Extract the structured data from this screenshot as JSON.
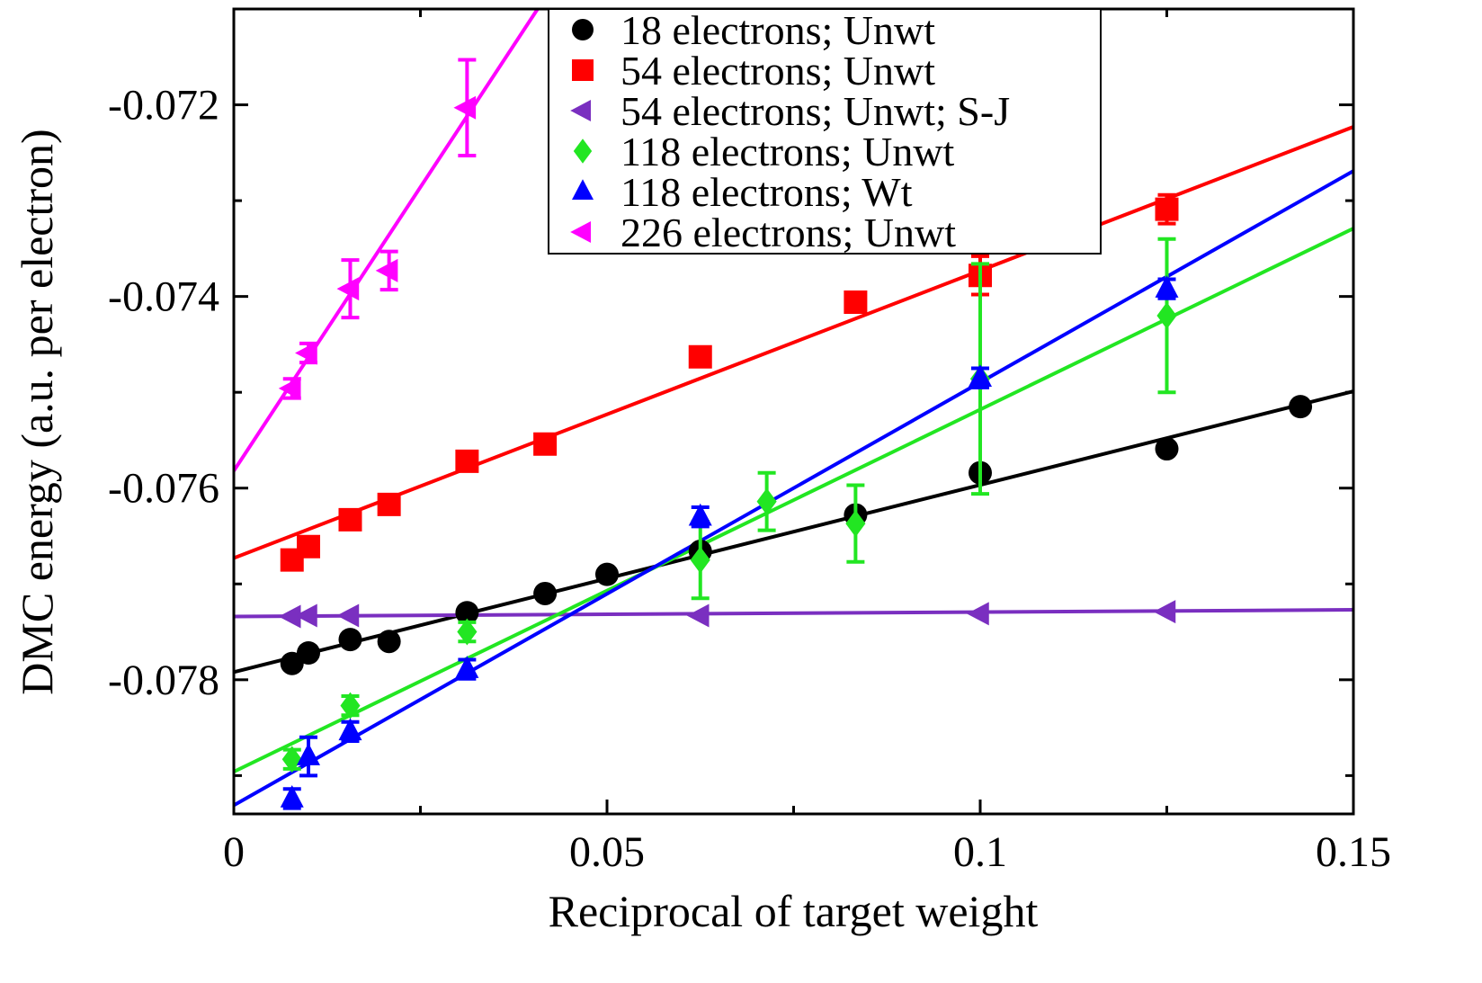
{
  "chart_data": {
    "type": "scatter",
    "x_label": "Reciprocal of target weight",
    "y_label": "DMC energy (a.u. per electron)",
    "xlim": [
      0,
      0.15
    ],
    "ylim": [
      -0.0794,
      -0.071
    ],
    "xticks": [
      0,
      0.05,
      0.1,
      0.15
    ],
    "yticks": [
      -0.078,
      -0.076,
      -0.074,
      -0.072
    ],
    "xminorticks": [
      0.025,
      0.075,
      0.125
    ],
    "yminorticks": [
      -0.079,
      -0.077,
      -0.075,
      -0.073,
      -0.071
    ],
    "legend": "top-center",
    "series": [
      {
        "name": "18 electrons; Unwt",
        "color": "#000000",
        "marker": "circle",
        "x": [
          0.0078,
          0.01,
          0.0156,
          0.0208,
          0.03125,
          0.0417,
          0.05,
          0.0625,
          0.0833,
          0.1,
          0.125,
          0.1429
        ],
        "values": [
          -0.07783,
          -0.07772,
          -0.07758,
          -0.0776,
          -0.0773,
          -0.0771,
          -0.0769,
          -0.07666,
          -0.07628,
          -0.07584,
          -0.07559,
          -0.07515
        ],
        "fit": {
          "x": [
            0,
            0.15
          ],
          "y": [
            -0.07792,
            -0.07499
          ]
        }
      },
      {
        "name": "54 electrons; Unwt",
        "color": "#ff0000",
        "marker": "square",
        "x": [
          0.0078,
          0.01,
          0.0156,
          0.0208,
          0.03125,
          0.0417,
          0.0625,
          0.0833,
          0.1,
          0.125
        ],
        "values": [
          -0.07675,
          -0.07661,
          -0.07633,
          -0.07617,
          -0.07572,
          -0.07554,
          -0.07463,
          -0.07406,
          -0.07378,
          -0.07309
        ],
        "errors": [
          null,
          null,
          null,
          null,
          null,
          null,
          null,
          null,
          0.0002,
          0.00015
        ],
        "fit": {
          "x": [
            0,
            0.15
          ],
          "y": [
            -0.07673,
            -0.07223
          ]
        }
      },
      {
        "name": "54 electrons; Unwt; S-J",
        "color": "#7a2fc0",
        "marker": "triangle-left",
        "x": [
          0.0078,
          0.01,
          0.0156,
          0.0625,
          0.1,
          0.125
        ],
        "values": [
          -0.07734,
          -0.07733,
          -0.07733,
          -0.07733,
          -0.07731,
          -0.07729
        ],
        "fit": {
          "x": [
            0,
            0.15
          ],
          "y": [
            -0.07734,
            -0.07727
          ]
        }
      },
      {
        "name": "118 electrons; Unwt",
        "color": "#22e622",
        "marker": "diamond",
        "x": [
          0.0078,
          0.0156,
          0.03125,
          0.0625,
          0.0714,
          0.0833,
          0.1,
          0.125
        ],
        "values": [
          -0.07883,
          -0.07827,
          -0.0775,
          -0.07675,
          -0.07614,
          -0.07637,
          -0.07486,
          -0.0742
        ],
        "errors": [
          0.0001,
          0.0001,
          0.0001,
          0.0004,
          0.0003,
          0.0004,
          0.0012,
          0.0008
        ],
        "fit": {
          "x": [
            0,
            0.15
          ],
          "y": [
            -0.07896,
            -0.07329
          ]
        }
      },
      {
        "name": "118 electrons; Wt",
        "color": "#0000ff",
        "marker": "triangle-up",
        "x": [
          0.0078,
          0.01,
          0.0156,
          0.03125,
          0.0625,
          0.1,
          0.125
        ],
        "values": [
          -0.07924,
          -0.0788,
          -0.07854,
          -0.07789,
          -0.0763,
          -0.07485,
          -0.07392
        ],
        "errors": [
          0.0001,
          0.0002,
          0.0001,
          0.0001,
          0.0001,
          0.0001,
          0.0001
        ],
        "fit": {
          "x": [
            0,
            0.15
          ],
          "y": [
            -0.07931,
            -0.07269
          ]
        }
      },
      {
        "name": "226 electrons; Unwt",
        "color": "#ff00ff",
        "marker": "triangle-left",
        "x": [
          0.0078,
          0.01,
          0.0156,
          0.0208,
          0.03125
        ],
        "values": [
          -0.07496,
          -0.07459,
          -0.07392,
          -0.07373,
          -0.07203
        ],
        "errors": [
          0.0001,
          0.0001,
          0.0003,
          0.0002,
          0.0005
        ],
        "fit": {
          "x": [
            0,
            0.0407
          ],
          "y": [
            -0.07582,
            -0.071
          ]
        }
      }
    ]
  }
}
